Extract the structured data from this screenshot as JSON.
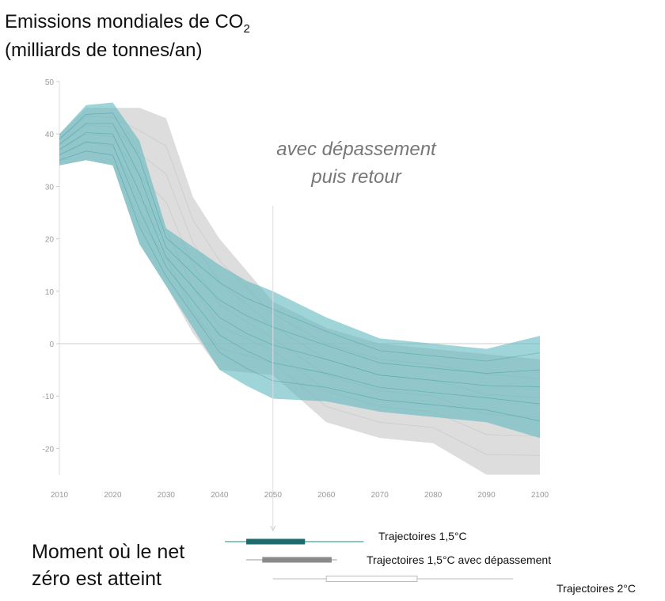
{
  "title_line1": "Emissions mondiales de CO",
  "title_sub": "2",
  "title_line2": "(milliards de tonnes/an)",
  "net_zero_label_line1": "Moment où le net",
  "net_zero_label_line2": "zéro est atteint",
  "colors": {
    "teal_band": "#5fb8c0",
    "grey_band": "#cfcfcf",
    "teal_dark": "#1d6b6b",
    "grey_dark": "#8a8a8a"
  },
  "chart_data": {
    "type": "area",
    "xlabel": "",
    "ylabel": "Emissions mondiales de CO2 (milliards de tonnes/an)",
    "xlim": [
      2010,
      2100
    ],
    "ylim": [
      -25,
      50
    ],
    "xticks": [
      "2010",
      "2020",
      "2030",
      "2040",
      "2050",
      "2060",
      "2070",
      "2080",
      "2090",
      "2100"
    ],
    "yticks": [
      "50",
      "40",
      "30",
      "20",
      "10",
      "0",
      "-10",
      "-20"
    ],
    "annotation": [
      "avec dépassement",
      "puis retour"
    ],
    "series": [
      {
        "name": "Trajectoires 1,5°C avec dépassement",
        "x": [
          2010,
          2015,
          2020,
          2025,
          2030,
          2035,
          2040,
          2050,
          2060,
          2070,
          2080,
          2090,
          2100
        ],
        "upper": [
          40,
          45,
          45,
          45,
          43,
          28,
          20,
          8,
          3,
          0,
          -1,
          -2,
          -3
        ],
        "lower": [
          34,
          35,
          34,
          19,
          11,
          2,
          -5,
          -6,
          -15,
          -18,
          -19,
          -25,
          -25
        ]
      },
      {
        "name": "Trajectoires 1,5°C",
        "x": [
          2010,
          2015,
          2020,
          2025,
          2030,
          2040,
          2045,
          2050,
          2060,
          2070,
          2080,
          2090,
          2100
        ],
        "upper": [
          40,
          45.5,
          46,
          38.7,
          22,
          15,
          12,
          10,
          5,
          1,
          0,
          -1,
          1.5
        ],
        "lower": [
          34,
          35,
          34,
          19,
          11,
          -5,
          -8,
          -10.5,
          -11,
          -13,
          -14,
          -15,
          -18
        ]
      }
    ],
    "net_zero_timing": [
      {
        "label": "Trajectoires 1,5°C",
        "whisker": [
          2041,
          2067
        ],
        "box": [
          2045,
          2056
        ]
      },
      {
        "label": "Trajectoires 1,5°C avec dépassement",
        "whisker": [
          2045,
          2062
        ],
        "box": [
          2048,
          2061
        ]
      },
      {
        "label": "Trajectoires 2°C",
        "whisker": [
          2050,
          2095
        ],
        "box": [
          2060,
          2077
        ]
      }
    ]
  }
}
